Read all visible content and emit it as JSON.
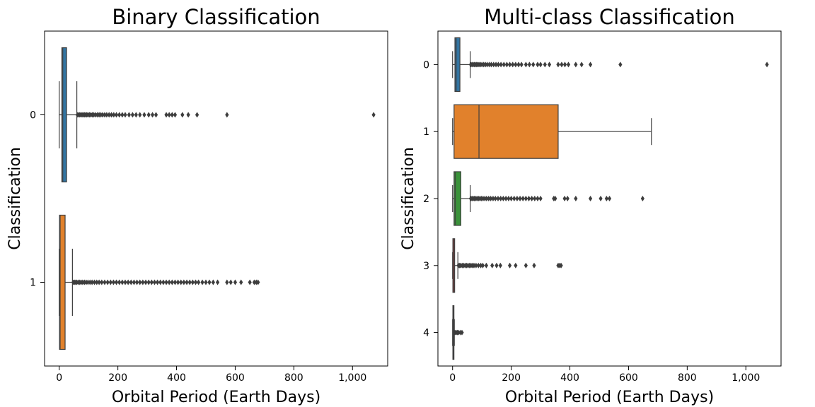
{
  "chart_data": [
    {
      "type": "boxplot",
      "orientation": "horizontal",
      "title": "Binary Classification",
      "xlabel": "Orbital Period (Earth Days)",
      "ylabel": "Classification",
      "xlim": [
        -50,
        1120
      ],
      "xticks": [
        0,
        200,
        400,
        600,
        800,
        1000
      ],
      "xtick_labels": [
        "0",
        "200",
        "400",
        "600",
        "800",
        "1,000"
      ],
      "grid": false,
      "categories": [
        "0",
        "1"
      ],
      "boxes": [
        {
          "category": "0",
          "color": "#3274a1",
          "min": 0,
          "q1": 9,
          "median": 12,
          "q3": 25,
          "whisker_high": 60,
          "outliers": [
            62,
            66,
            70,
            74,
            78,
            82,
            86,
            90,
            94,
            98,
            103,
            108,
            113,
            118,
            124,
            130,
            136,
            142,
            148,
            155,
            162,
            170,
            178,
            186,
            195,
            205,
            215,
            225,
            238,
            250,
            262,
            275,
            290,
            305,
            318,
            330,
            365,
            375,
            385,
            395,
            420,
            440,
            470,
            572,
            1072
          ]
        },
        {
          "category": "1",
          "color": "#e1812c",
          "min": 0,
          "q1": 1,
          "median": 3,
          "q3": 20,
          "whisker_high": 45,
          "outliers": [
            48,
            52,
            56,
            60,
            65,
            70,
            75,
            80,
            86,
            92,
            98,
            105,
            112,
            120,
            128,
            136,
            145,
            155,
            165,
            175,
            185,
            195,
            205,
            215,
            225,
            235,
            245,
            255,
            265,
            275,
            285,
            295,
            305,
            315,
            325,
            335,
            345,
            355,
            365,
            375,
            385,
            395,
            405,
            415,
            425,
            435,
            445,
            455,
            465,
            475,
            488,
            500,
            512,
            525,
            540,
            572,
            585,
            600,
            620,
            650,
            665,
            672,
            678
          ]
        }
      ]
    },
    {
      "type": "boxplot",
      "orientation": "horizontal",
      "title": "Multi-class Classification",
      "xlabel": "Orbital Period (Earth Days)",
      "ylabel": "Classification",
      "xlim": [
        -50,
        1120
      ],
      "xticks": [
        0,
        200,
        400,
        600,
        800,
        1000
      ],
      "xtick_labels": [
        "0",
        "200",
        "400",
        "600",
        "800",
        "1,000"
      ],
      "grid": false,
      "categories": [
        "0",
        "1",
        "2",
        "3",
        "4"
      ],
      "boxes": [
        {
          "category": "0",
          "color": "#3274a1",
          "min": 0,
          "q1": 8,
          "median": 12,
          "q3": 25,
          "whisker_high": 60,
          "outliers": [
            62,
            66,
            70,
            74,
            78,
            82,
            86,
            90,
            95,
            100,
            106,
            112,
            118,
            125,
            132,
            140,
            148,
            156,
            165,
            175,
            185,
            195,
            205,
            215,
            225,
            235,
            250,
            262,
            275,
            290,
            300,
            315,
            330,
            360,
            372,
            383,
            395,
            420,
            440,
            470,
            572,
            1072
          ]
        },
        {
          "category": "1",
          "color": "#e1812c",
          "min": 0,
          "q1": 5,
          "median": 90,
          "q3": 360,
          "whisker_high": 678,
          "outliers": []
        },
        {
          "category": "2",
          "color": "#3a923a",
          "min": 0,
          "q1": 5,
          "median": 9,
          "q3": 28,
          "whisker_high": 60,
          "outliers": [
            62,
            66,
            70,
            74,
            78,
            83,
            88,
            93,
            98,
            104,
            110,
            116,
            123,
            130,
            138,
            146,
            155,
            164,
            173,
            182,
            191,
            200,
            210,
            220,
            230,
            240,
            250,
            260,
            270,
            280,
            290,
            300,
            345,
            350,
            382,
            392,
            420,
            470,
            505,
            525,
            535,
            648
          ]
        },
        {
          "category": "3",
          "color": "#c03d3e",
          "min": 0,
          "q1": 1,
          "median": 3,
          "q3": 7,
          "whisker_high": 18,
          "outliers": [
            20,
            24,
            28,
            33,
            38,
            43,
            48,
            53,
            58,
            63,
            68,
            73,
            80,
            88,
            96,
            103,
            115,
            135,
            150,
            163,
            195,
            215,
            250,
            278,
            360,
            365,
            370
          ]
        },
        {
          "category": "4",
          "color": "#9372b2",
          "min": 0,
          "q1": 1,
          "median": 2,
          "q3": 4,
          "whisker_high": 6,
          "outliers": [
            8,
            12,
            16,
            20,
            26,
            32
          ]
        }
      ]
    }
  ]
}
